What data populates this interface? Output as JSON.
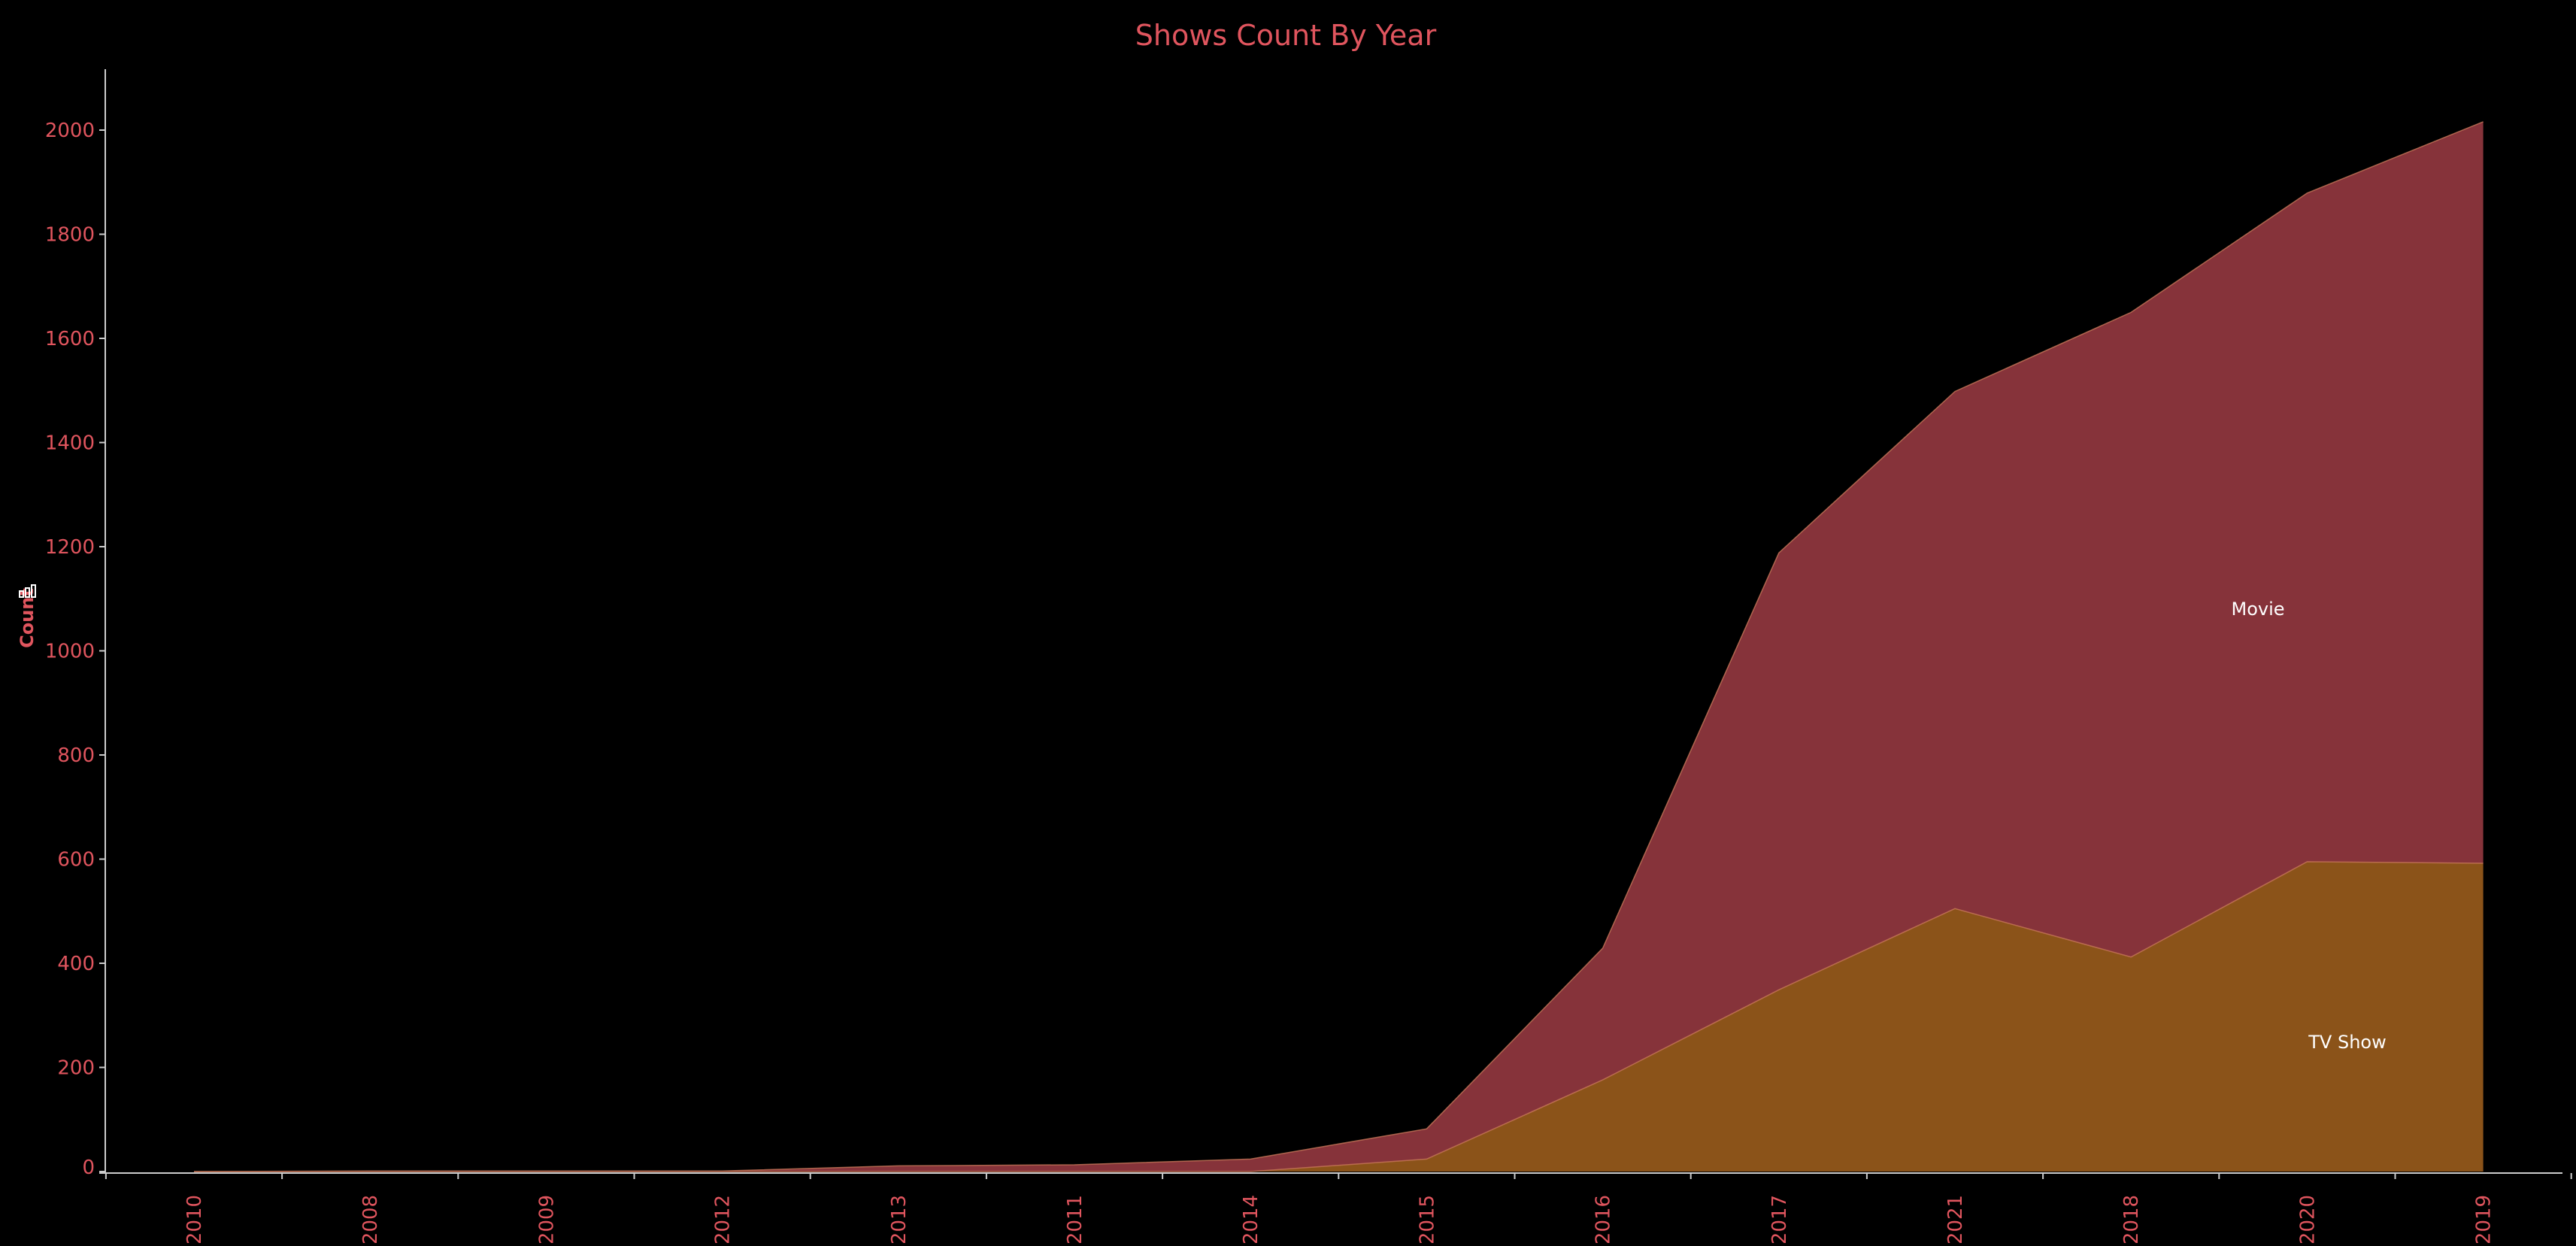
{
  "chart_data": {
    "type": "area",
    "stacked": true,
    "title": "Shows Count By Year",
    "ylabel": "Count",
    "xlabel": "",
    "categories": [
      "2010",
      "2008",
      "2009",
      "2012",
      "2013",
      "2011",
      "2014",
      "2015",
      "2016",
      "2017",
      "2021",
      "2018",
      "2020",
      "2019"
    ],
    "series": [
      {
        "name": "TV Show",
        "color": "#8b5319",
        "values": [
          0,
          0,
          0,
          0,
          0,
          0,
          0,
          24,
          176,
          349,
          505,
          412,
          595,
          592
        ]
      },
      {
        "name": "Movie",
        "color": "#86333a",
        "values": [
          0,
          1,
          1,
          1,
          11,
          13,
          24,
          58,
          253,
          839,
          993,
          1238,
          1284,
          1424
        ]
      }
    ],
    "ylim": [
      0,
      2100
    ],
    "yticks": [
      0,
      200,
      400,
      600,
      800,
      1000,
      1200,
      1400,
      1600,
      1800,
      2000
    ],
    "grid": false,
    "legend": "inline labels",
    "colors": {
      "background": "#000000",
      "text": "#e0555e",
      "axis": "#cccccc",
      "label": "#ffffff"
    }
  }
}
